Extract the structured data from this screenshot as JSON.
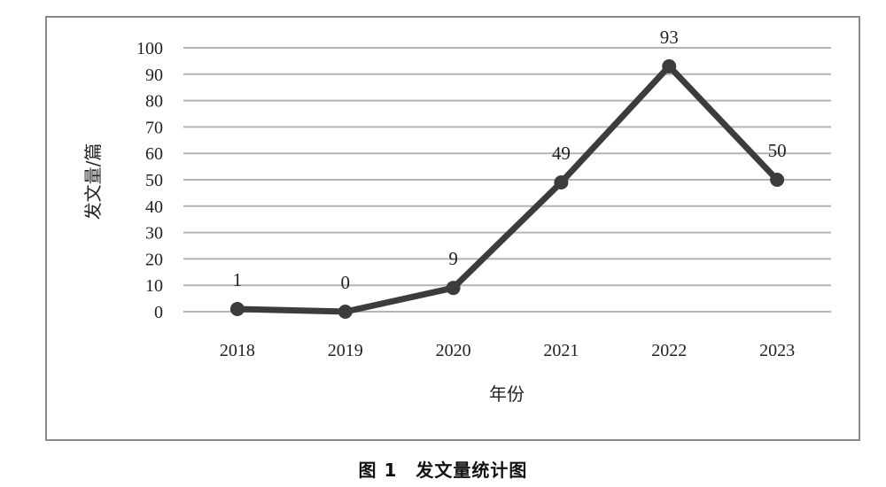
{
  "caption": "图 1　发文量统计图",
  "chart_data": {
    "type": "line",
    "title": "",
    "xlabel": "年份",
    "ylabel": "发文量/篇",
    "categories": [
      "2018",
      "2019",
      "2020",
      "2021",
      "2022",
      "2023"
    ],
    "series": [
      {
        "values": [
          1,
          0,
          9,
          49,
          93,
          50
        ]
      }
    ],
    "ylim": [
      0,
      100
    ],
    "yticks": [
      0,
      10,
      20,
      30,
      40,
      50,
      60,
      70,
      80,
      90,
      100
    ],
    "data_labels": [
      "1",
      "0",
      "9",
      "49",
      "93",
      "50"
    ],
    "grid": "horizontal",
    "legend": "none",
    "line_color": "#3c3c3c",
    "grid_color": "#b4b4b4"
  }
}
